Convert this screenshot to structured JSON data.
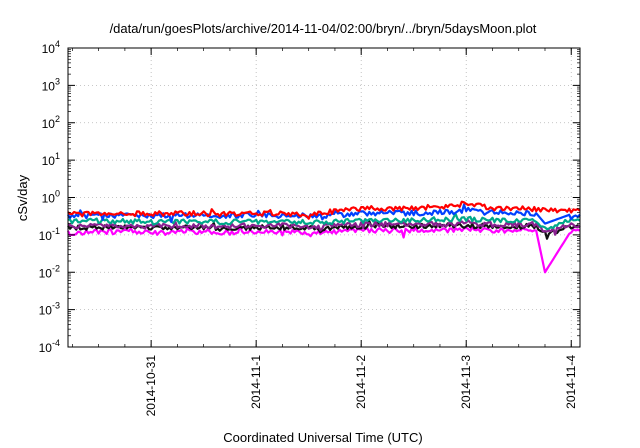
{
  "chart_data": {
    "type": "line",
    "title": "/data/run/goesPlots/archive/2014-11-04/02:00/bryn/../bryn/5daysMoon.plot",
    "xlabel": "Coordinated Universal Time (UTC)",
    "ylabel": "cSv/day",
    "yscale": "log",
    "ylim": [
      0.0001,
      10000
    ],
    "xlim": [
      "2014-10-30T05:00",
      "2014-11-04T02:00"
    ],
    "y_ticks": [
      {
        "base": "10",
        "exp": "-4",
        "value": 0.0001
      },
      {
        "base": "10",
        "exp": "-3",
        "value": 0.001
      },
      {
        "base": "10",
        "exp": "-2",
        "value": 0.01
      },
      {
        "base": "10",
        "exp": "-1",
        "value": 0.1
      },
      {
        "base": "10",
        "exp": "0",
        "value": 1
      },
      {
        "base": "10",
        "exp": "1",
        "value": 10
      },
      {
        "base": "10",
        "exp": "2",
        "value": 100
      },
      {
        "base": "10",
        "exp": "3",
        "value": 1000
      },
      {
        "base": "10",
        "exp": "4",
        "value": 10000
      }
    ],
    "x_ticks": [
      {
        "label": "2014-10-31",
        "value": "2014-10-31T00:00"
      },
      {
        "label": "2014-11-1",
        "value": "2014-11-01T00:00"
      },
      {
        "label": "2014-11-2",
        "value": "2014-11-02T00:00"
      },
      {
        "label": "2014-11-3",
        "value": "2014-11-03T00:00"
      },
      {
        "label": "2014-11-4",
        "value": "2014-11-04T00:00"
      }
    ],
    "grid": true,
    "series": [
      {
        "color": "#ff0000",
        "x": [
          "2014-10-30T05:00",
          "2014-10-30T12:00",
          "2014-10-30T18:00",
          "2014-10-31T00:00",
          "2014-10-31T06:00",
          "2014-10-31T12:00",
          "2014-10-31T18:00",
          "2014-11-01T00:00",
          "2014-11-01T06:00",
          "2014-11-01T12:00",
          "2014-11-01T16:00",
          "2014-11-01T20:00",
          "2014-11-02T00:00",
          "2014-11-02T06:00",
          "2014-11-02T12:00",
          "2014-11-02T18:00",
          "2014-11-02T22:00",
          "2014-11-03T00:00",
          "2014-11-03T06:00",
          "2014-11-03T12:00",
          "2014-11-03T16:00",
          "2014-11-03T18:00",
          "2014-11-04T00:00",
          "2014-11-04T02:00"
        ],
        "values": [
          0.35,
          0.38,
          0.37,
          0.36,
          0.38,
          0.37,
          0.36,
          0.38,
          0.37,
          0.36,
          0.4,
          0.46,
          0.5,
          0.52,
          0.52,
          0.56,
          0.62,
          0.72,
          0.52,
          0.5,
          0.5,
          0.45,
          0.45,
          0.44
        ]
      },
      {
        "color": "#0040ff",
        "x": [
          "2014-10-30T05:00",
          "2014-10-30T12:00",
          "2014-10-30T18:00",
          "2014-10-31T00:00",
          "2014-10-31T06:00",
          "2014-10-31T12:00",
          "2014-10-31T18:00",
          "2014-11-01T00:00",
          "2014-11-01T06:00",
          "2014-11-01T12:00",
          "2014-11-01T16:00",
          "2014-11-01T20:00",
          "2014-11-02T00:00",
          "2014-11-02T06:00",
          "2014-11-02T12:00",
          "2014-11-02T18:00",
          "2014-11-02T22:00",
          "2014-11-03T00:00",
          "2014-11-03T06:00",
          "2014-11-03T12:00",
          "2014-11-03T16:00",
          "2014-11-03T18:00",
          "2014-11-04T00:00",
          "2014-11-04T02:00"
        ],
        "values": [
          0.3,
          0.34,
          0.33,
          0.32,
          0.34,
          0.33,
          0.32,
          0.34,
          0.33,
          0.32,
          0.33,
          0.36,
          0.38,
          0.39,
          0.38,
          0.4,
          0.42,
          0.48,
          0.4,
          0.38,
          0.38,
          0.2,
          0.36,
          0.35
        ]
      },
      {
        "color": "#00a88a",
        "x": [
          "2014-10-30T05:00",
          "2014-10-30T12:00",
          "2014-10-30T18:00",
          "2014-10-31T00:00",
          "2014-10-31T06:00",
          "2014-10-31T12:00",
          "2014-10-31T18:00",
          "2014-11-01T00:00",
          "2014-11-01T06:00",
          "2014-11-01T12:00",
          "2014-11-01T16:00",
          "2014-11-01T20:00",
          "2014-11-02T00:00",
          "2014-11-02T06:00",
          "2014-11-02T12:00",
          "2014-11-02T18:00",
          "2014-11-02T22:00",
          "2014-11-03T00:00",
          "2014-11-03T06:00",
          "2014-11-03T12:00",
          "2014-11-03T16:00",
          "2014-11-03T18:00",
          "2014-11-04T00:00",
          "2014-11-04T02:00"
        ],
        "values": [
          0.22,
          0.24,
          0.23,
          0.22,
          0.23,
          0.23,
          0.22,
          0.23,
          0.23,
          0.22,
          0.22,
          0.23,
          0.24,
          0.25,
          0.25,
          0.26,
          0.26,
          0.27,
          0.25,
          0.25,
          0.25,
          0.15,
          0.24,
          0.24
        ]
      },
      {
        "color": "#8a2090",
        "x": [
          "2014-10-30T05:00",
          "2014-10-30T12:00",
          "2014-10-30T18:00",
          "2014-10-31T00:00",
          "2014-10-31T06:00",
          "2014-10-31T12:00",
          "2014-10-31T18:00",
          "2014-11-01T00:00",
          "2014-11-01T06:00",
          "2014-11-01T12:00",
          "2014-11-01T16:00",
          "2014-11-01T20:00",
          "2014-11-02T00:00",
          "2014-11-02T06:00",
          "2014-11-02T12:00",
          "2014-11-02T18:00",
          "2014-11-02T22:00",
          "2014-11-03T00:00",
          "2014-11-03T06:00",
          "2014-11-03T12:00",
          "2014-11-03T16:00",
          "2014-11-03T18:00",
          "2014-11-04T00:00",
          "2014-11-04T02:00"
        ],
        "values": [
          0.17,
          0.18,
          0.18,
          0.17,
          0.18,
          0.18,
          0.17,
          0.18,
          0.18,
          0.17,
          0.17,
          0.18,
          0.19,
          0.19,
          0.19,
          0.19,
          0.2,
          0.2,
          0.19,
          0.19,
          0.19,
          0.12,
          0.18,
          0.18
        ]
      },
      {
        "color": "#111111",
        "x": [
          "2014-10-30T05:00",
          "2014-10-30T12:00",
          "2014-10-30T18:00",
          "2014-10-31T00:00",
          "2014-10-31T06:00",
          "2014-10-31T12:00",
          "2014-10-31T18:00",
          "2014-11-01T00:00",
          "2014-11-01T06:00",
          "2014-11-01T12:00",
          "2014-11-01T16:00",
          "2014-11-01T20:00",
          "2014-11-02T00:00",
          "2014-11-02T06:00",
          "2014-11-02T12:00",
          "2014-11-02T18:00",
          "2014-11-02T22:00",
          "2014-11-03T00:00",
          "2014-11-03T06:00",
          "2014-11-03T12:00",
          "2014-11-03T16:00",
          "2014-11-03T18:00",
          "2014-11-04T00:00",
          "2014-11-04T02:00"
        ],
        "values": [
          0.15,
          0.16,
          0.16,
          0.15,
          0.16,
          0.16,
          0.15,
          0.16,
          0.16,
          0.15,
          0.15,
          0.16,
          0.17,
          0.17,
          0.17,
          0.17,
          0.18,
          0.18,
          0.17,
          0.17,
          0.17,
          0.11,
          0.16,
          0.16
        ]
      },
      {
        "color": "#ff00ff",
        "x": [
          "2014-10-30T05:00",
          "2014-10-30T12:00",
          "2014-10-30T18:00",
          "2014-10-31T00:00",
          "2014-10-31T06:00",
          "2014-10-31T12:00",
          "2014-10-31T18:00",
          "2014-11-01T00:00",
          "2014-11-01T06:00",
          "2014-11-01T12:00",
          "2014-11-01T16:00",
          "2014-11-01T20:00",
          "2014-11-02T00:00",
          "2014-11-02T06:00",
          "2014-11-02T12:00",
          "2014-11-02T18:00",
          "2014-11-02T22:00",
          "2014-11-03T00:00",
          "2014-11-03T06:00",
          "2014-11-03T12:00",
          "2014-11-03T16:00",
          "2014-11-03T18:00",
          "2014-11-04T00:00",
          "2014-11-04T02:00"
        ],
        "values": [
          0.11,
          0.12,
          0.12,
          0.11,
          0.12,
          0.12,
          0.11,
          0.12,
          0.12,
          0.11,
          0.12,
          0.12,
          0.13,
          0.13,
          0.13,
          0.13,
          0.14,
          0.14,
          0.13,
          0.13,
          0.13,
          0.01,
          0.13,
          0.13
        ]
      }
    ]
  }
}
